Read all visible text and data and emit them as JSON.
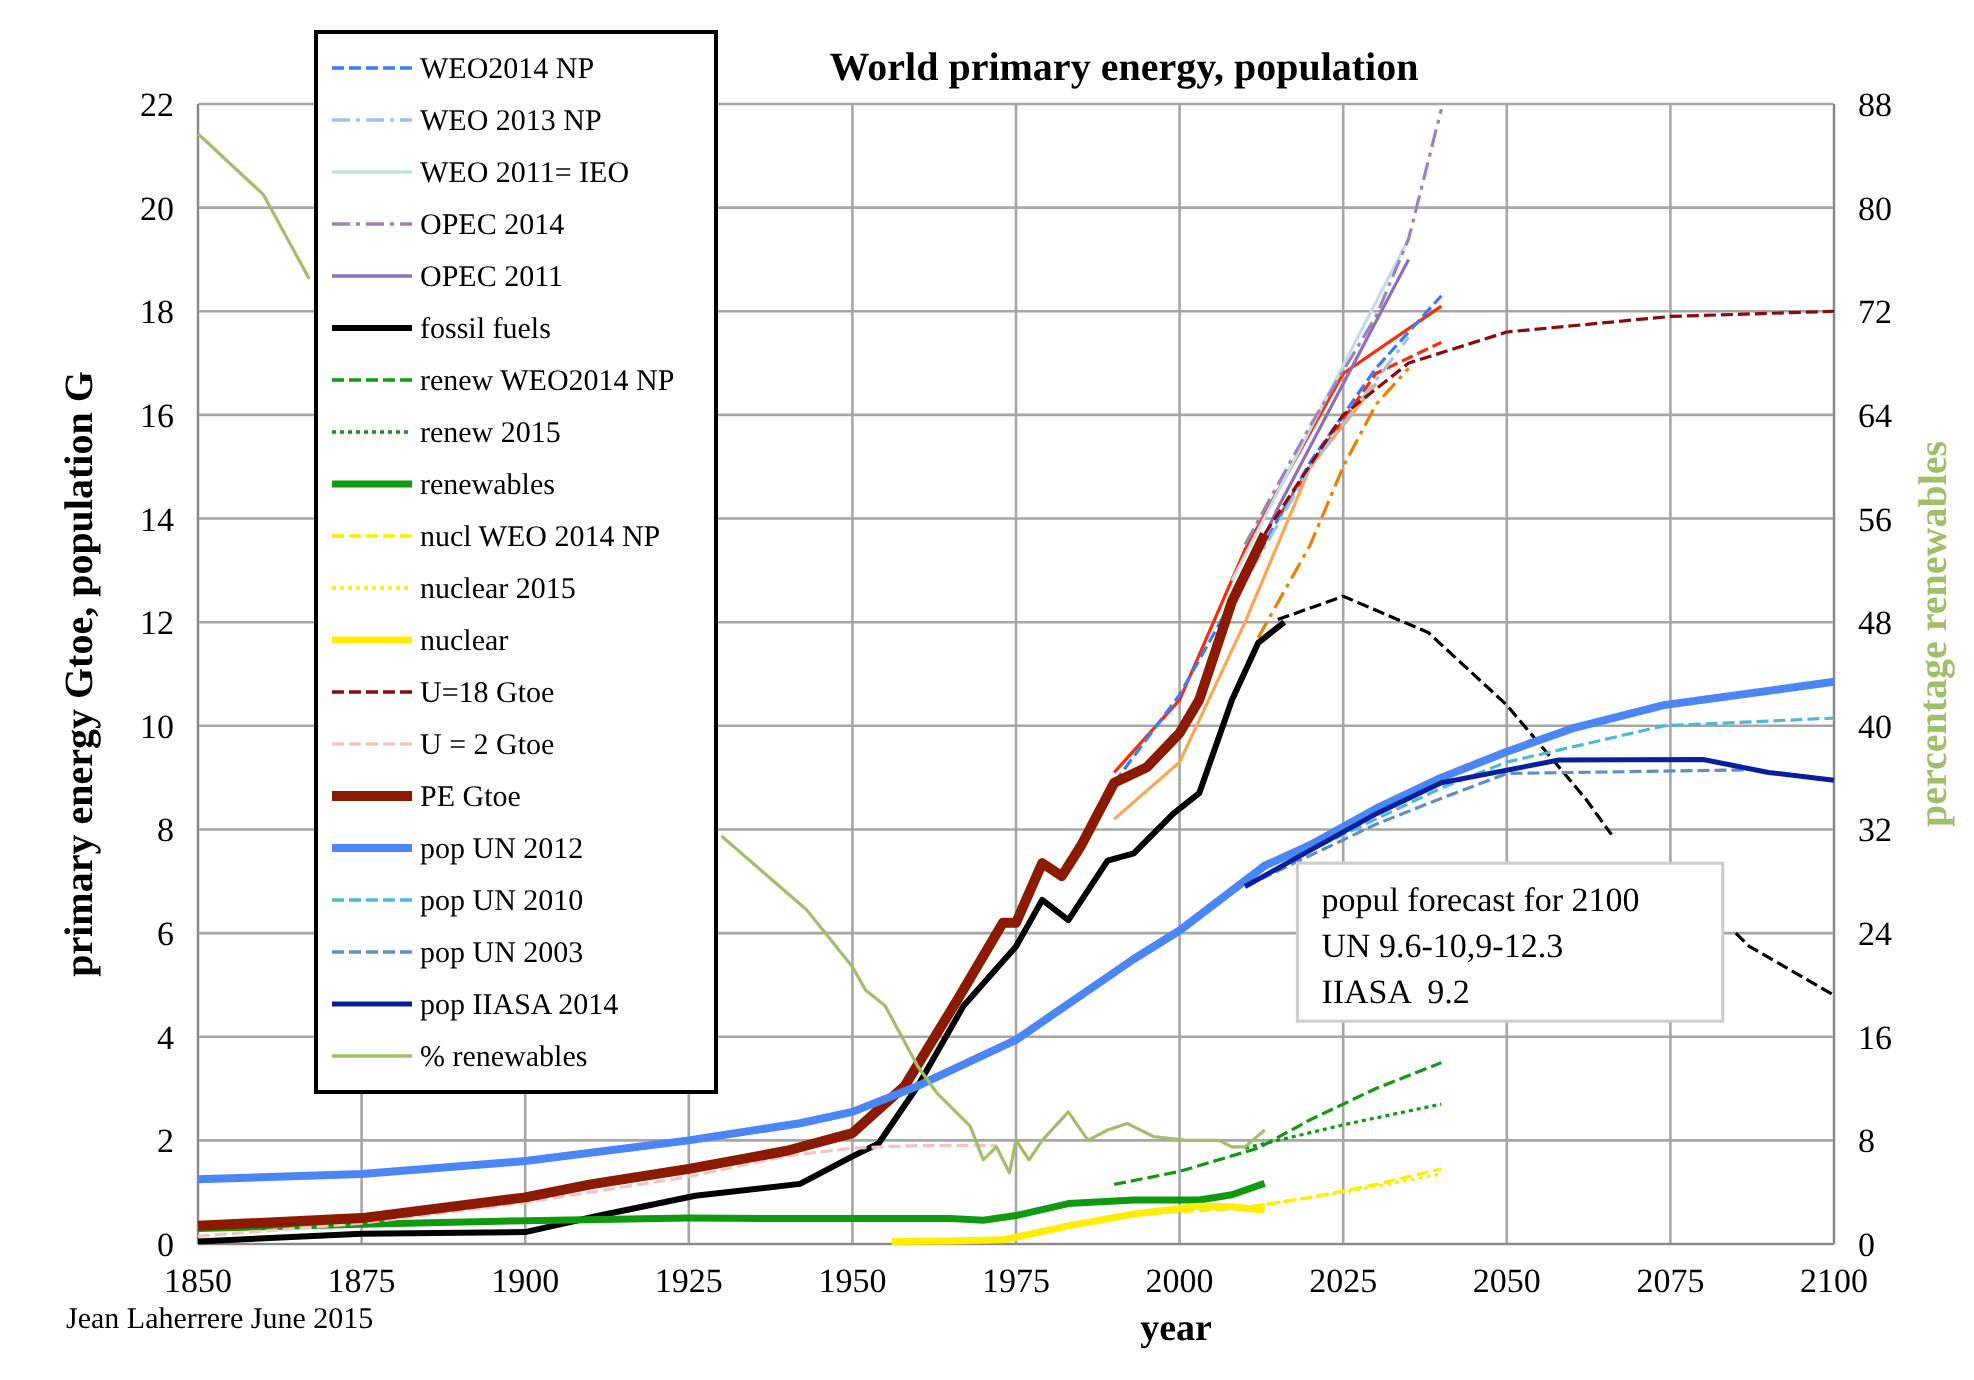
{
  "chart_data": {
    "type": "line",
    "title": "World primary energy, population",
    "xlabel": "year",
    "ylabel": "primary energy Gtoe, population G",
    "y2label": "percentage renewables",
    "xlim": [
      1850,
      2100
    ],
    "xticks": [
      1850,
      1875,
      1900,
      1925,
      1950,
      1975,
      2000,
      2025,
      2050,
      2075,
      2100
    ],
    "ylim": [
      0,
      22
    ],
    "yticks": [
      0,
      2,
      4,
      6,
      8,
      10,
      12,
      14,
      16,
      18,
      20,
      22
    ],
    "y2lim": [
      0,
      88
    ],
    "y2ticks": [
      0,
      8,
      16,
      24,
      32,
      40,
      48,
      56,
      64,
      72,
      80,
      88
    ],
    "grid": true,
    "legend": "top left",
    "marker": "none",
    "annotations": [
      "popul forecast for 2100\nUN 9.6-10,9-12.3\nIIASA  9.2",
      "Jean Laherrere June 2015"
    ],
    "series": [
      {
        "color": "#ff2a00",
        "line_style": "solid",
        "x": [
          1990,
          2000,
          2010,
          2025,
          2040
        ],
        "values": [
          9.1,
          10.5,
          13.4,
          16.8,
          18.1
        ]
      },
      {
        "color": "#ff2a00",
        "line_style": "dashed",
        "x": [
          2015,
          2020,
          2030,
          2040
        ],
        "values": [
          14.0,
          15.0,
          16.8,
          17.4
        ]
      },
      {
        "color": "#f07f00",
        "line_style": "dashdot",
        "x": [
          2012,
          2020,
          2025,
          2030,
          2035
        ],
        "values": [
          11.7,
          13.5,
          15.0,
          16.2,
          16.9
        ]
      },
      {
        "color": "#ffa552",
        "line_style": "solid",
        "x": [
          1990,
          2000,
          2010,
          2020,
          2030
        ],
        "values": [
          8.2,
          9.3,
          12.0,
          15.0,
          16.6
        ]
      },
      {
        "name": "WEO2014 NP",
        "color": "#3a7cff",
        "line_style": "dashed",
        "x": [
          1990,
          2000,
          2012,
          2020,
          2030,
          2040
        ],
        "values": [
          8.9,
          10.6,
          13.3,
          15.1,
          16.9,
          18.3
        ]
      },
      {
        "name": "WEO 2013 NP",
        "color": "#9cc3e8",
        "line_style": "dashdot",
        "x": [
          2011,
          2020,
          2035
        ],
        "values": [
          13.0,
          15.0,
          17.5
        ]
      },
      {
        "name": "WEO 2011= IEO",
        "color": "#bfe0ea",
        "line_style": "solid",
        "x": [
          2008,
          2035
        ],
        "values": [
          12.8,
          19.4
        ]
      },
      {
        "name": "OPEC 2014",
        "color": "#9b82c0",
        "line_style": "dashdot",
        "x": [
          2010,
          2020,
          2030,
          2035,
          2040
        ],
        "values": [
          13.5,
          15.8,
          17.9,
          19.4,
          21.9
        ]
      },
      {
        "name": "OPEC 2011",
        "color": "#8f6fb8",
        "line_style": "solid",
        "x": [
          2008,
          2015,
          2025,
          2035
        ],
        "values": [
          12.3,
          14.2,
          16.6,
          19.0
        ]
      },
      {
        "name": "fossil fuels",
        "color": "#000000",
        "line_style": "solid",
        "x": [
          1850,
          1875,
          1900,
          1911,
          1926,
          1942,
          1950,
          1954,
          1960,
          1967,
          1975,
          1979,
          1983,
          1989,
          1993,
          1999,
          2003,
          2008,
          2012,
          2016
        ],
        "values": [
          0.05,
          0.2,
          0.23,
          0.54,
          0.93,
          1.16,
          1.69,
          1.94,
          3.05,
          4.6,
          5.74,
          6.64,
          6.25,
          7.4,
          7.54,
          8.3,
          8.7,
          10.5,
          11.6,
          12.0
        ]
      },
      {
        "color": "#000000",
        "line_style": "dashed",
        "x": [
          2015,
          2025,
          2038,
          2050,
          2062,
          2066,
          2074,
          2085,
          2087,
          2100
        ],
        "values": [
          12.05,
          12.5,
          11.8,
          10.4,
          8.6,
          7.9,
          null,
          6.0,
          5.75,
          4.8
        ]
      },
      {
        "name": "renew WEO2014 NP",
        "color": "#119911",
        "line_style": "dashed",
        "x": [
          1990,
          2000,
          2012,
          2020,
          2030,
          2040
        ],
        "values": [
          1.15,
          1.4,
          1.85,
          2.4,
          3.0,
          3.5
        ]
      },
      {
        "name": "renew 2015",
        "color": "#119911",
        "line_style": "dotted",
        "x": [
          2010,
          2025,
          2040
        ],
        "values": [
          1.85,
          2.3,
          2.7
        ]
      },
      {
        "name": "renewables",
        "color": "#0f9a0f",
        "line_style": "solid",
        "x": [
          1850,
          1875,
          1900,
          1925,
          1942,
          1965,
          1970,
          1975,
          1983,
          1993,
          2003,
          2008,
          2013
        ],
        "values": [
          0.3,
          0.38,
          0.45,
          0.5,
          0.49,
          0.49,
          0.46,
          0.55,
          0.78,
          0.85,
          0.85,
          0.95,
          1.17
        ]
      },
      {
        "name": "nucl WEO 2014 NP",
        "color": "#ffee00",
        "line_style": "dashed",
        "x": [
          1990,
          2000,
          2010,
          2020,
          2030,
          2040
        ],
        "values": [
          0.55,
          0.62,
          0.7,
          0.9,
          1.15,
          1.45
        ]
      },
      {
        "name": "nuclear 2015",
        "color": "#ffee00",
        "line_style": "dotted",
        "x": [
          2010,
          2025,
          2040
        ],
        "values": [
          0.7,
          1.0,
          1.35
        ]
      },
      {
        "name": "nuclear",
        "color": "#ffee00",
        "line_style": "solid",
        "x": [
          1956,
          1965,
          1973,
          1983,
          1993,
          2003,
          2008,
          2013
        ],
        "values": [
          0.05,
          0.06,
          0.08,
          0.35,
          0.58,
          0.73,
          0.72,
          0.65
        ]
      },
      {
        "name": "U=18 Gtoe",
        "color": "#8b0a0a",
        "line_style": "dashed",
        "x": [
          2013,
          2025,
          2035,
          2050,
          2075,
          2100
        ],
        "values": [
          13.7,
          16.0,
          17.0,
          17.6,
          17.9,
          18.0
        ]
      },
      {
        "name": "U = 2 Gtoe",
        "color": "#f2c4c4",
        "line_style": "dashed",
        "x": [
          1850,
          1875,
          1900,
          1925,
          1940,
          1950,
          1960,
          1972
        ],
        "values": [
          0.15,
          0.4,
          0.8,
          1.3,
          1.7,
          1.85,
          1.9,
          1.9
        ]
      },
      {
        "name": "PE Gtoe",
        "color": "#8b1a00",
        "line_style": "solid",
        "x": [
          1850,
          1875,
          1900,
          1910,
          1925,
          1940,
          1950,
          1958,
          1966,
          1973,
          1975,
          1979,
          1982,
          1985,
          1990,
          1995,
          2000,
          2003,
          2008,
          2013
        ],
        "values": [
          0.35,
          0.5,
          0.9,
          1.15,
          1.45,
          1.8,
          2.14,
          3.05,
          4.7,
          6.2,
          6.2,
          7.35,
          7.1,
          7.7,
          8.9,
          9.2,
          9.86,
          10.5,
          12.4,
          13.7
        ]
      },
      {
        "name": "pop UN 2012",
        "color": "#4a86f5",
        "line_style": "solid",
        "x": [
          1850,
          1875,
          1900,
          1925,
          1942,
          1950,
          1960,
          1975,
          1993,
          2000,
          2013,
          2020,
          2030,
          2040,
          2050,
          2060,
          2074,
          2100
        ],
        "values": [
          1.25,
          1.35,
          1.6,
          2.0,
          2.33,
          2.55,
          3.05,
          3.94,
          5.5,
          6.05,
          7.3,
          7.7,
          8.4,
          9.0,
          9.5,
          9.95,
          10.4,
          10.85
        ]
      },
      {
        "name": "pop UN 2010",
        "color": "#4fb8d8",
        "line_style": "dashed",
        "x": [
          2010,
          2020,
          2030,
          2040,
          2050,
          2074,
          2100
        ],
        "values": [
          6.9,
          7.6,
          8.2,
          8.8,
          9.3,
          10.0,
          10.15
        ]
      },
      {
        "name": "pop UN 2003",
        "color": "#5d8fc6",
        "line_style": "dashed",
        "x": [
          2010,
          2020,
          2030,
          2040,
          2050,
          2087
        ],
        "values": [
          6.9,
          7.5,
          8.1,
          8.6,
          9.08,
          9.15
        ]
      },
      {
        "name": "pop IIASA 2014",
        "color": "#0a1f9c",
        "line_style": "solid",
        "x": [
          2010,
          2020,
          2030,
          2040,
          2058,
          2080,
          2090,
          2100
        ],
        "values": [
          6.9,
          7.6,
          8.3,
          8.9,
          9.34,
          9.35,
          9.1,
          8.95
        ]
      },
      {
        "name": "% renewables",
        "color": "#a3be6a",
        "line_style": "solid",
        "axis": "y2",
        "x": [
          1850,
          1860,
          1867,
          1900,
          1930,
          1943,
          1950,
          1952,
          1955,
          1960,
          1963,
          1968,
          1970,
          1972,
          1974,
          1975,
          1977,
          1979,
          1983,
          1986,
          1989,
          1992,
          1996,
          2001,
          2006,
          2008,
          2010,
          2013
        ],
        "values": [
          85.7,
          81,
          74.5,
          null,
          31.5,
          25.8,
          21.4,
          19.6,
          18.4,
          13.7,
          11.6,
          9.1,
          6.5,
          7.5,
          5.5,
          8.0,
          6.5,
          8.0,
          10.2,
          8.0,
          8.8,
          9.3,
          8.3,
          8.0,
          8.0,
          7.5,
          7.5,
          8.8
        ]
      }
    ]
  }
}
